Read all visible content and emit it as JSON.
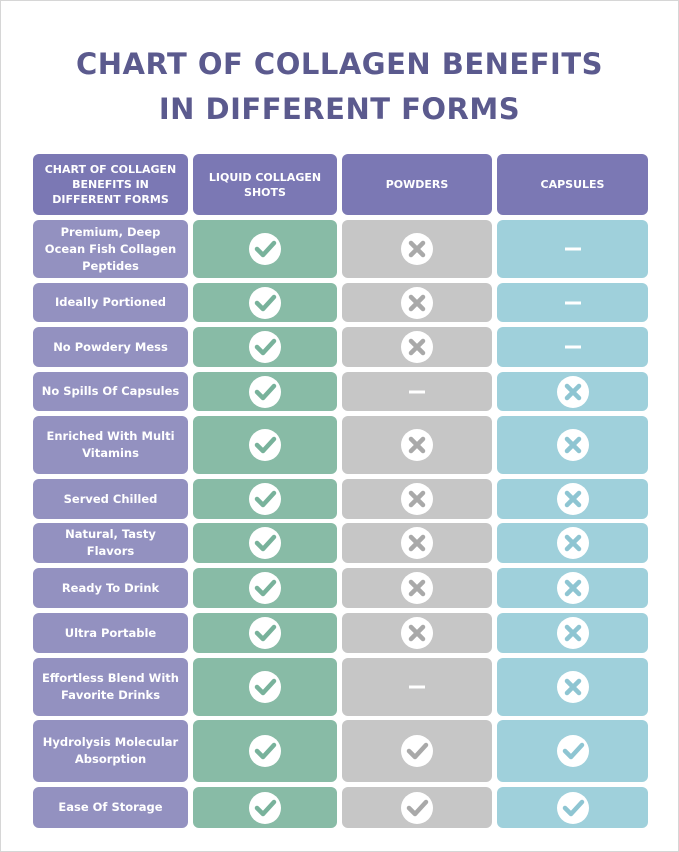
{
  "title": [
    "CHART OF COLLAGEN BENEFITS",
    "IN DIFFERENT FORMS"
  ],
  "table": {
    "header": [
      "CHART OF COLLAGEN BENEFITS IN DIFFERENT FORMS",
      "LIQUID COLLAGEN SHOTS",
      "POWDERS",
      "CAPSULES"
    ],
    "rows": [
      "Premium, Deep Ocean Fish Collagen Peptides",
      "Ideally Portioned",
      "No Powdery Mess",
      "No Spills Of Capsules",
      "Enriched With Multi Vitamins",
      "Served Chilled",
      "Natural, Tasty Flavors",
      "Ready To Drink",
      "Ultra Portable",
      "Effortless Blend With Favorite Drinks",
      "Hydrolysis Molecular Absorption",
      "Ease Of Storage"
    ]
  }
}
